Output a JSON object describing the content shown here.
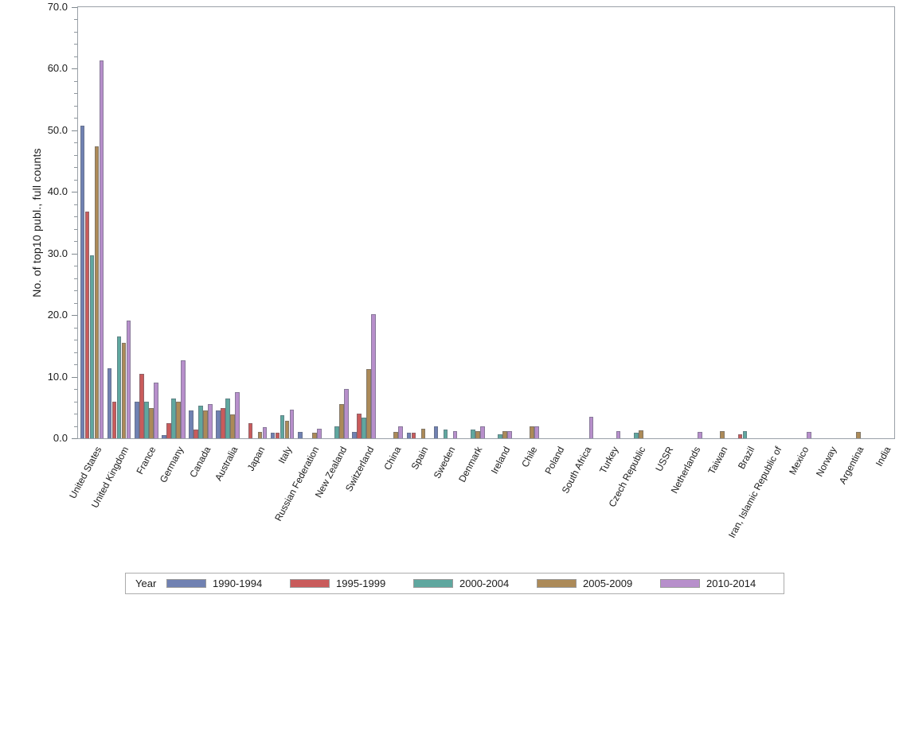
{
  "chart_data": {
    "type": "bar",
    "title": "",
    "xlabel": "",
    "ylabel": "No. of top10 publ., full counts",
    "ylim": [
      0,
      70
    ],
    "y_major_step": 10,
    "y_minor_step": 2,
    "y_tick_decimals": 1,
    "grid": false,
    "legend_title": "Year",
    "legend_position": "bottom",
    "categories": [
      "United States",
      "United Kingdom",
      "France",
      "Germany",
      "Canada",
      "Australia",
      "Japan",
      "Italy",
      "Russian Federation",
      "New Zealand",
      "Switzerland",
      "China",
      "Spain",
      "Sweden",
      "Denmark",
      "Ireland",
      "Chile",
      "Poland",
      "South Africa",
      "Turkey",
      "Czech Republic",
      "USSR",
      "Netherlands",
      "Taiwan",
      "Brazil",
      "Iran, Islamic Republic of",
      "Mexico",
      "Norway",
      "Argentina",
      "India"
    ],
    "series": [
      {
        "name": "1990-1994",
        "color": "#7081B2",
        "values": [
          50.8,
          11.4,
          5.9,
          0.5,
          4.5,
          4.5,
          0,
          0.9,
          1.0,
          0,
          1.0,
          0,
          0.9,
          2.0,
          0,
          0,
          0,
          0,
          0,
          0,
          0,
          0,
          0,
          0,
          0,
          0,
          0,
          0,
          0,
          0
        ]
      },
      {
        "name": "1995-1999",
        "color": "#C95B5B",
        "values": [
          36.8,
          5.9,
          10.4,
          2.4,
          1.4,
          4.9,
          2.4,
          0.9,
          0,
          0,
          4.0,
          0,
          0.9,
          0,
          0,
          0,
          0,
          0,
          0,
          0,
          0,
          0,
          0,
          0,
          0.7,
          0,
          0,
          0,
          0,
          0
        ]
      },
      {
        "name": "2000-2004",
        "color": "#5FA79F",
        "values": [
          29.7,
          16.5,
          5.9,
          6.4,
          5.3,
          6.4,
          0,
          3.8,
          0,
          2.0,
          3.4,
          0,
          0,
          1.4,
          1.4,
          0.7,
          0,
          0,
          0,
          0,
          0.9,
          0,
          0,
          0,
          1.1,
          0,
          0,
          0,
          0,
          0
        ]
      },
      {
        "name": "2005-2009",
        "color": "#AC8A58",
        "values": [
          47.4,
          15.5,
          4.9,
          5.9,
          4.5,
          3.9,
          1.0,
          2.8,
          0.9,
          5.6,
          11.3,
          1.0,
          1.5,
          0,
          1.1,
          1.1,
          1.9,
          0,
          0,
          0,
          1.3,
          0,
          0,
          1.1,
          0,
          0,
          0,
          0,
          1.0,
          0
        ]
      },
      {
        "name": "2010-2014",
        "color": "#B78FCB",
        "values": [
          61.3,
          19.1,
          9.0,
          12.6,
          5.6,
          7.5,
          1.8,
          4.7,
          1.5,
          8.0,
          20.2,
          1.9,
          0,
          1.1,
          2.0,
          1.1,
          1.9,
          0,
          3.5,
          1.1,
          0,
          0,
          1.0,
          0,
          0,
          0,
          1.0,
          0,
          0,
          0
        ]
      }
    ],
    "colors": {
      "axis_border": "#9AA1A8",
      "tick": "#7F888F",
      "text": "#1b1b1b",
      "background": "#ffffff"
    }
  }
}
